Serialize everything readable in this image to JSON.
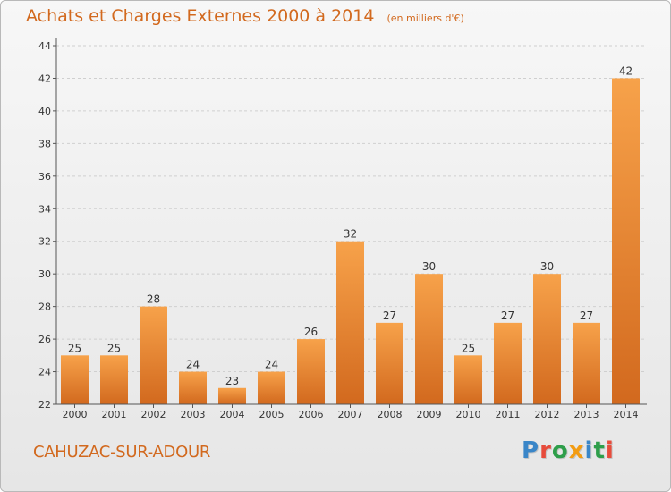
{
  "chart_data": {
    "type": "bar",
    "title": "Achats et Charges Externes 2000 à 2014",
    "subtitle": "(en milliers d'€)",
    "categories": [
      "2000",
      "2001",
      "2002",
      "2003",
      "2004",
      "2005",
      "2006",
      "2007",
      "2008",
      "2009",
      "2010",
      "2011",
      "2012",
      "2013",
      "2014"
    ],
    "values": [
      25,
      25,
      28,
      24,
      23,
      24,
      26,
      32,
      27,
      30,
      25,
      27,
      30,
      27,
      42
    ],
    "ylim": [
      22,
      44
    ],
    "yticks": [
      22,
      24,
      26,
      28,
      30,
      32,
      34,
      36,
      38,
      40,
      42,
      44
    ],
    "grid": true,
    "xlabel": "",
    "ylabel": "",
    "colors": {
      "bar_light": "#f7a24a",
      "bar_dark": "#d2691e",
      "grid": "#cccccc",
      "text": "#d2691e"
    }
  },
  "footer": {
    "place": "CAHUZAC-SUR-ADOUR",
    "logo_letters": [
      {
        "ch": "P",
        "color": "#3a86c8"
      },
      {
        "ch": "r",
        "color": "#e74c3c"
      },
      {
        "ch": "o",
        "color": "#2e9e4a"
      },
      {
        "ch": "x",
        "color": "#f39c12"
      },
      {
        "ch": "i",
        "color": "#3a86c8"
      },
      {
        "ch": "t",
        "color": "#2e9e4a"
      },
      {
        "ch": "i",
        "color": "#e74c3c"
      }
    ]
  }
}
